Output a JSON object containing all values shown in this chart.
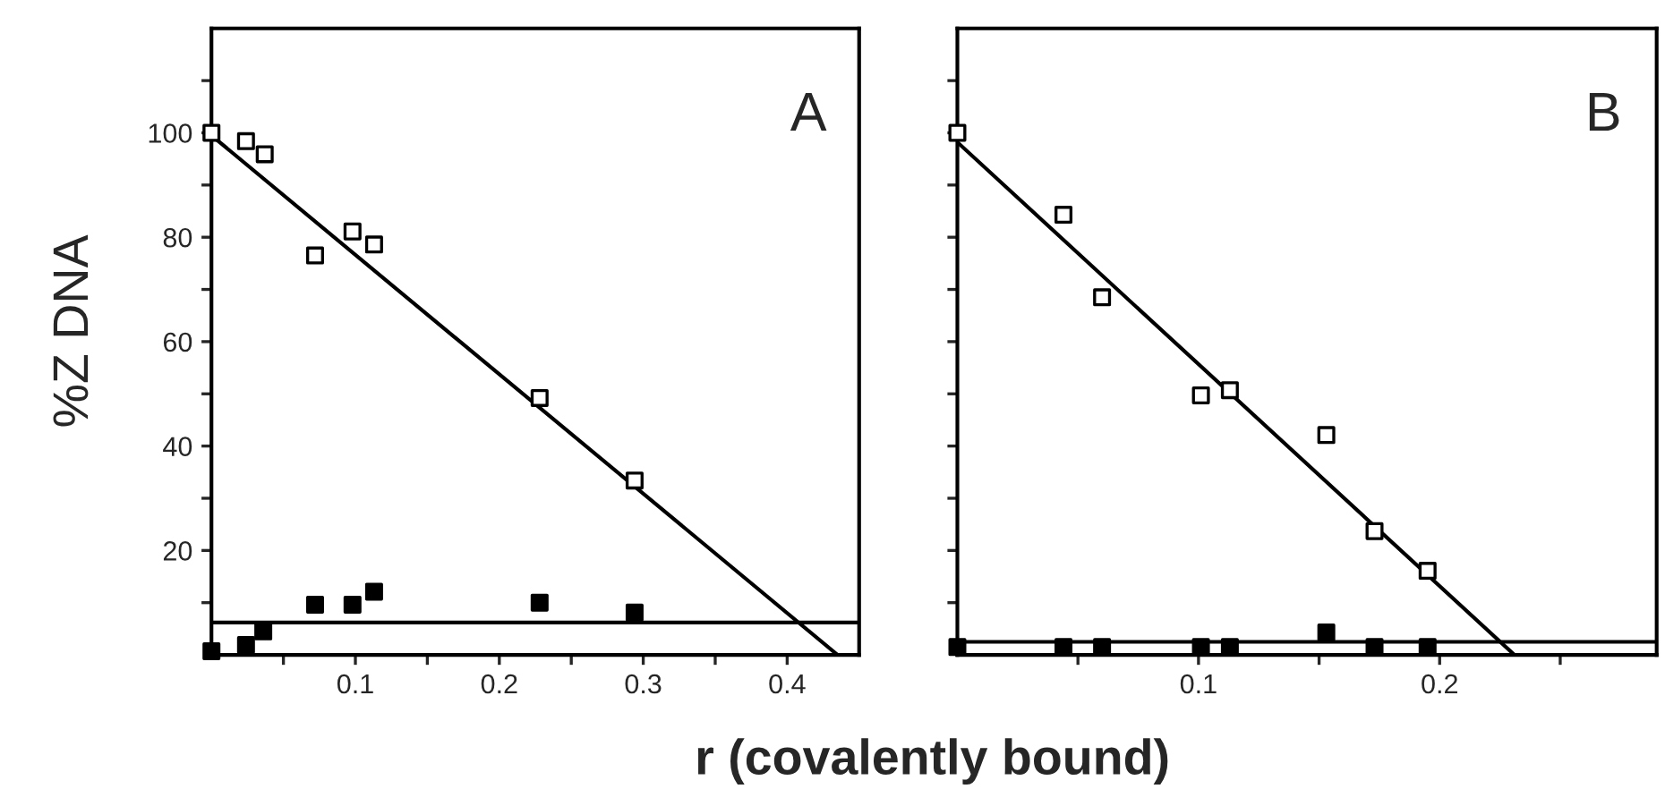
{
  "chart_data": [
    {
      "type": "scatter",
      "ylabel": "%Z DNA",
      "xlabel": "r (covalently bound)",
      "annotations": [
        "A"
      ],
      "xlim": [
        0,
        0.45
      ],
      "ylim": [
        0,
        120
      ],
      "xticks": [
        {
          "value": 0.05,
          "label": null
        },
        0.1,
        {
          "value": 0.15,
          "label": null
        },
        0.2,
        {
          "value": 0.25,
          "label": null
        },
        0.3,
        {
          "value": 0.35,
          "label": null
        },
        0.4
      ],
      "yticks": [
        {
          "value": 10,
          "label": null
        },
        20,
        {
          "value": 30,
          "label": null
        },
        40,
        {
          "value": 50,
          "label": null
        },
        60,
        {
          "value": 70,
          "label": null
        },
        80,
        {
          "value": 90,
          "label": null
        },
        100,
        {
          "value": 110,
          "label": null
        }
      ],
      "grid": false,
      "legend": false,
      "ref_lines": [
        {
          "axis": "y",
          "value": 6.2,
          "label": null,
          "color": "#000000"
        }
      ],
      "series": [
        {
          "marker": "square",
          "color": "#ffffff",
          "x": [
            0.0,
            0.024,
            0.037,
            0.072,
            0.098,
            0.113,
            0.228,
            0.294
          ],
          "values": [
            100,
            98.4,
            95.9,
            76.5,
            81.1,
            78.6,
            49.2,
            33.4
          ]
        },
        {
          "marker": "square",
          "color": "#000000",
          "x": [
            0.0,
            0.024,
            0.036,
            0.072,
            0.098,
            0.113,
            0.228,
            0.294
          ],
          "values": [
            0.7,
            1.9,
            4.5,
            9.6,
            9.6,
            12.1,
            10.0,
            8.1
          ]
        },
        {
          "type": "line",
          "marker": "none",
          "color": "#000000",
          "x": [
            0.0,
            0.435
          ],
          "values": [
            99.5,
            0
          ]
        }
      ]
    },
    {
      "type": "scatter",
      "annotations": [
        "B"
      ],
      "xlim": [
        0,
        0.29
      ],
      "ylim": [
        0,
        120
      ],
      "tick_labels": "x",
      "xticks": [
        {
          "value": 0.05,
          "label": null
        },
        0.1,
        {
          "value": 0.15,
          "label": null
        },
        0.2,
        {
          "value": 0.25,
          "label": null
        }
      ],
      "yticks": [
        {
          "value": 10,
          "label": null
        },
        {
          "value": 20,
          "label": null
        },
        {
          "value": 30,
          "label": null
        },
        {
          "value": 40,
          "label": null
        },
        {
          "value": 50,
          "label": null
        },
        {
          "value": 60,
          "label": null
        },
        {
          "value": 70,
          "label": null
        },
        {
          "value": 80,
          "label": null
        },
        {
          "value": 90,
          "label": null
        },
        {
          "value": 100,
          "label": null
        },
        {
          "value": 110,
          "label": null
        }
      ],
      "grid": false,
      "legend": false,
      "ref_lines": [
        {
          "axis": "y",
          "value": 2.5,
          "label": null,
          "color": "#000000"
        }
      ],
      "series": [
        {
          "marker": "square",
          "color": "#ffffff",
          "x": [
            0.0,
            0.044,
            0.06,
            0.101,
            0.113,
            0.153,
            0.173,
            0.195
          ],
          "values": [
            100,
            84.3,
            68.5,
            49.7,
            50.7,
            42.1,
            23.7,
            16.1
          ]
        },
        {
          "marker": "square",
          "color": "#000000",
          "x": [
            0.0,
            0.044,
            0.06,
            0.101,
            0.113,
            0.153,
            0.173,
            0.195
          ],
          "values": [
            1.5,
            1.5,
            1.5,
            1.5,
            1.5,
            4.3,
            1.5,
            1.5
          ]
        },
        {
          "type": "line",
          "marker": "none",
          "color": "#000000",
          "x": [
            0.0,
            0.231
          ],
          "values": [
            98.2,
            0
          ]
        }
      ]
    }
  ]
}
